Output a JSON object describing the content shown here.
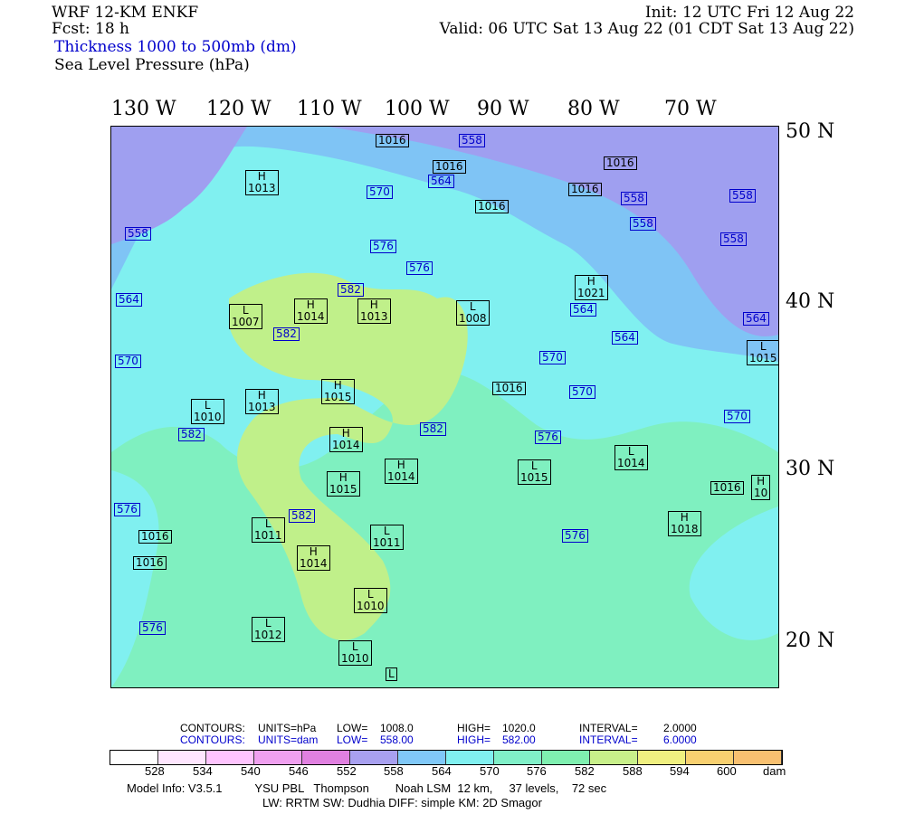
{
  "header": {
    "model": "WRF 12-KM ENKF",
    "fcst": "Fcst:   18 h",
    "field1": "Thickness 1000 to 500mb (dm)",
    "field2": "Sea Level Pressure (hPa)",
    "init": "Init: 12 UTC Fri 12 Aug 22",
    "valid": "Valid: 06 UTC Sat 13 Aug 22 (01 CDT Sat 13 Aug 22)"
  },
  "longitudes": [
    "130 W",
    "120 W",
    "110 W",
    "100 W",
    "90 W",
    "80 W",
    "70 W"
  ],
  "latitudes": [
    "50 N",
    "40 N",
    "30 N",
    "20 N"
  ],
  "colors": {
    "band_558": "#9f9ff0",
    "band_564": "#7fc4f5",
    "band_570": "#80f0f0",
    "band_576": "#7ff0c0",
    "band_582": "#c0f08a",
    "contour_slp": "#000000",
    "contour_thk": "#0000cc"
  },
  "pressure_centers": [
    {
      "type": "H",
      "value": "1013"
    },
    {
      "type": "L",
      "value": "1007"
    },
    {
      "type": "H",
      "value": "1014"
    },
    {
      "type": "H",
      "value": "1013"
    },
    {
      "type": "L",
      "value": "1008"
    },
    {
      "type": "H",
      "value": "1021"
    },
    {
      "type": "H",
      "value": "1013"
    },
    {
      "type": "L",
      "value": "1010"
    },
    {
      "type": "H",
      "value": "1015"
    },
    {
      "type": "H",
      "value": "1014"
    },
    {
      "type": "H",
      "value": "1014"
    },
    {
      "type": "H",
      "value": "1015"
    },
    {
      "type": "L",
      "value": "1015"
    },
    {
      "type": "L",
      "value": "1014"
    },
    {
      "type": "L",
      "value": "1011"
    },
    {
      "type": "L",
      "value": "1011"
    },
    {
      "type": "H",
      "value": "1014"
    },
    {
      "type": "L",
      "value": "1010"
    },
    {
      "type": "H",
      "value": "1018"
    },
    {
      "type": "L",
      "value": "1012"
    },
    {
      "type": "L",
      "value": "1010"
    },
    {
      "type": "L",
      "value": "1015"
    },
    {
      "type": "H",
      "value": "10"
    },
    {
      "type": "L",
      "value": ""
    }
  ],
  "slp_labels": [
    "1016",
    "1016",
    "1016",
    "1016",
    "1016",
    "1016",
    "1016",
    "1016",
    "1016"
  ],
  "thickness_labels": [
    "558",
    "564",
    "570",
    "570",
    "576",
    "576",
    "582",
    "582",
    "564",
    "558",
    "558",
    "558",
    "558",
    "558",
    "564",
    "564",
    "570",
    "570",
    "576",
    "576",
    "582",
    "582",
    "576",
    "564",
    "570",
    "582",
    "576"
  ],
  "legend": {
    "row1": {
      "label": "CONTOURS:",
      "units": "UNITS=hPa",
      "low": "LOW=",
      "low_v": "1008.0",
      "high": "HIGH=",
      "high_v": "1020.0",
      "interval": "INTERVAL=",
      "interval_v": "2.0000"
    },
    "row2": {
      "label": "CONTOURS:",
      "units": "UNITS=dam",
      "low": "LOW=",
      "low_v": "558.00",
      "high": "HIGH=",
      "high_v": "582.00",
      "interval": "INTERVAL=",
      "interval_v": "6.0000"
    },
    "colorbar": [
      "#ffffff",
      "#ffe6ff",
      "#ffc4ff",
      "#f0a0f0",
      "#e080e0",
      "#a8a0f0",
      "#80c8f8",
      "#80f0f0",
      "#80f0c8",
      "#7ff0b0",
      "#c8f08a",
      "#f0f080",
      "#f8d070",
      "#f8c070"
    ],
    "ticks": [
      "528",
      "534",
      "540",
      "546",
      "552",
      "558",
      "564",
      "570",
      "576",
      "582",
      "588",
      "594",
      "600",
      "dam"
    ]
  },
  "footer": {
    "line1": "Model Info: V3.5.1          YSU PBL   Thompson        Noah LSM  12 km,     37 levels,    72 sec",
    "line2": "LW: RRTM SW: Dudhia  DIFF: simple KM: 2D Smagor"
  }
}
